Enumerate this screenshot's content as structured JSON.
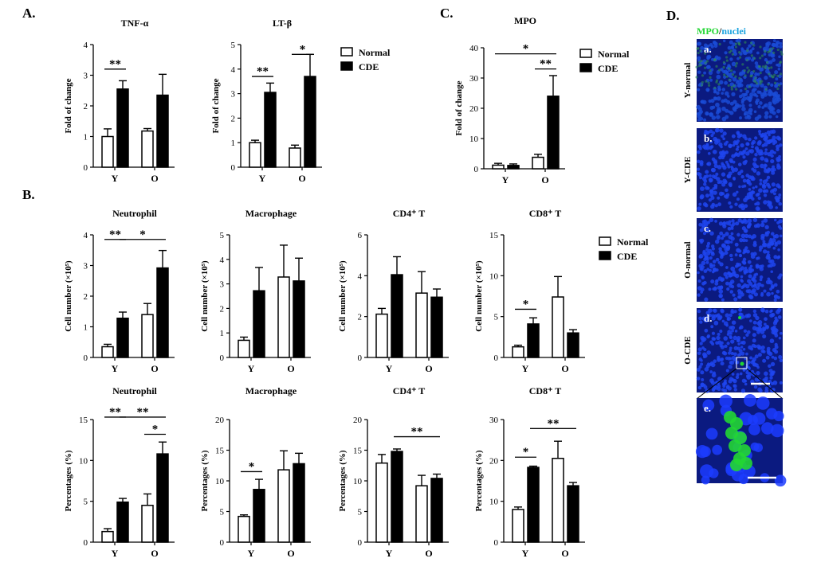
{
  "panels": {
    "a": "A.",
    "b": "B.",
    "c": "C.",
    "d": "D."
  },
  "legend": {
    "normal": "Normal",
    "cde": "CDE"
  },
  "chart_data": [
    {
      "id": "tnf",
      "type": "bar",
      "title": "TNF-α",
      "ylabel": "Fold of change",
      "ylim": [
        0,
        4
      ],
      "yticks": [
        0,
        1,
        2,
        3,
        4
      ],
      "categories": [
        "Y",
        "O"
      ],
      "series": [
        {
          "name": "Normal",
          "values": [
            1.0,
            1.18
          ],
          "err": [
            0.25,
            0.08
          ]
        },
        {
          "name": "CDE",
          "values": [
            2.55,
            2.35
          ],
          "err": [
            0.27,
            0.68
          ]
        }
      ],
      "sig": [
        {
          "label": "**",
          "from": "Y-Normal",
          "to": "Y-CDE",
          "y": 3.2
        }
      ]
    },
    {
      "id": "ltb",
      "type": "bar",
      "title": "LT-β",
      "ylabel": "Fold of change",
      "ylim": [
        0,
        5
      ],
      "yticks": [
        0,
        1,
        2,
        3,
        4,
        5
      ],
      "categories": [
        "Y",
        "O"
      ],
      "series": [
        {
          "name": "Normal",
          "values": [
            1.0,
            0.78
          ],
          "err": [
            0.1,
            0.12
          ]
        },
        {
          "name": "CDE",
          "values": [
            3.05,
            3.7
          ],
          "err": [
            0.38,
            0.9
          ]
        }
      ],
      "sig": [
        {
          "label": "**",
          "from": "Y-Normal",
          "to": "Y-CDE",
          "y": 3.7
        },
        {
          "label": "*",
          "from": "O-Normal",
          "to": "O-CDE",
          "y": 4.6
        }
      ]
    },
    {
      "id": "mpo",
      "type": "bar",
      "title": "MPO",
      "ylabel": "Fold of change",
      "ylim": [
        0,
        40
      ],
      "yticks": [
        0,
        10,
        20,
        30,
        40
      ],
      "categories": [
        "Y",
        "O"
      ],
      "series": [
        {
          "name": "Normal",
          "values": [
            1.2,
            3.8
          ],
          "err": [
            0.6,
            1.0
          ]
        },
        {
          "name": "CDE",
          "values": [
            1.1,
            24.0
          ],
          "err": [
            0.5,
            6.8
          ]
        }
      ],
      "sig": [
        {
          "label": "**",
          "from": "O-Normal",
          "to": "O-CDE",
          "y": 33
        },
        {
          "label": "*",
          "from": "Y-Normal",
          "to": "O-CDE",
          "y": 38
        }
      ]
    },
    {
      "id": "neu_n",
      "type": "bar",
      "title": "Neutrophil",
      "ylabel": "Cell number (×10⁵)",
      "ylim": [
        0,
        4
      ],
      "yticks": [
        0,
        1,
        2,
        3,
        4
      ],
      "categories": [
        "Y",
        "O"
      ],
      "series": [
        {
          "name": "Normal",
          "values": [
            0.35,
            1.4
          ],
          "err": [
            0.08,
            0.36
          ]
        },
        {
          "name": "CDE",
          "values": [
            1.28,
            2.92
          ],
          "err": [
            0.2,
            0.57
          ]
        }
      ],
      "sig": [
        {
          "label": "**",
          "from": "Y-Normal",
          "to": "Y-CDE",
          "y": 3.85
        },
        {
          "label": "*",
          "from": "Y-CDE",
          "to": "O-CDE",
          "y": 3.85
        }
      ]
    },
    {
      "id": "mac_n",
      "type": "bar",
      "title": "Macrophage",
      "ylabel": "Cell number (×10⁵)",
      "ylim": [
        0,
        5
      ],
      "yticks": [
        0,
        1,
        2,
        3,
        4,
        5
      ],
      "categories": [
        "Y",
        "O"
      ],
      "series": [
        {
          "name": "Normal",
          "values": [
            0.7,
            3.28
          ],
          "err": [
            0.13,
            1.3
          ]
        },
        {
          "name": "CDE",
          "values": [
            2.72,
            3.12
          ],
          "err": [
            0.95,
            0.93
          ]
        }
      ],
      "sig": []
    },
    {
      "id": "cd4_n",
      "type": "bar",
      "title": "CD4⁺ T",
      "ylabel": "Cell number (×10⁵)",
      "ylim": [
        0,
        6
      ],
      "yticks": [
        0,
        2,
        4,
        6
      ],
      "categories": [
        "Y",
        "O"
      ],
      "series": [
        {
          "name": "Normal",
          "values": [
            2.12,
            3.15
          ],
          "err": [
            0.28,
            1.05
          ]
        },
        {
          "name": "CDE",
          "values": [
            4.05,
            2.95
          ],
          "err": [
            0.88,
            0.4
          ]
        }
      ],
      "sig": []
    },
    {
      "id": "cd8_n",
      "type": "bar",
      "title": "CD8⁺ T",
      "ylabel": "Cell number (×10⁵)",
      "ylim": [
        0,
        15
      ],
      "yticks": [
        0,
        5,
        10,
        15
      ],
      "categories": [
        "Y",
        "O"
      ],
      "series": [
        {
          "name": "Normal",
          "values": [
            1.3,
            7.4
          ],
          "err": [
            0.2,
            2.5
          ]
        },
        {
          "name": "CDE",
          "values": [
            4.1,
            3.0
          ],
          "err": [
            0.75,
            0.4
          ]
        }
      ],
      "sig": [
        {
          "label": "*",
          "from": "Y-Normal",
          "to": "Y-CDE",
          "y": 5.9
        }
      ]
    },
    {
      "id": "neu_p",
      "type": "bar",
      "title": "Neutrophil",
      "ylabel": "Percentages (%)",
      "ylim": [
        0,
        15
      ],
      "yticks": [
        0,
        5,
        10,
        15
      ],
      "categories": [
        "Y",
        "O"
      ],
      "series": [
        {
          "name": "Normal",
          "values": [
            1.3,
            4.5
          ],
          "err": [
            0.35,
            1.4
          ]
        },
        {
          "name": "CDE",
          "values": [
            4.9,
            10.8
          ],
          "err": [
            0.45,
            1.45
          ]
        }
      ],
      "sig": [
        {
          "label": "**",
          "from": "Y-Normal",
          "to": "Y-CDE",
          "y": 15.3
        },
        {
          "label": "**",
          "from": "Y-CDE",
          "to": "O-CDE",
          "y": 15.3
        },
        {
          "label": "*",
          "from": "O-Normal",
          "to": "O-CDE",
          "y": 13.2
        }
      ]
    },
    {
      "id": "mac_p",
      "type": "bar",
      "title": "Macrophage",
      "ylabel": "Percentages (%)",
      "ylim": [
        0,
        20
      ],
      "yticks": [
        0,
        5,
        10,
        15,
        20
      ],
      "categories": [
        "Y",
        "O"
      ],
      "series": [
        {
          "name": "Normal",
          "values": [
            4.2,
            11.8
          ],
          "err": [
            0.25,
            3.1
          ]
        },
        {
          "name": "CDE",
          "values": [
            8.6,
            12.8
          ],
          "err": [
            1.65,
            1.7
          ]
        }
      ],
      "sig": [
        {
          "label": "*",
          "from": "Y-Normal",
          "to": "Y-CDE",
          "y": 11.5
        }
      ]
    },
    {
      "id": "cd4_p",
      "type": "bar",
      "title": "CD4⁺ T",
      "ylabel": "Percentages (%)",
      "ylim": [
        0,
        20
      ],
      "yticks": [
        0,
        5,
        10,
        15,
        20
      ],
      "categories": [
        "Y",
        "O"
      ],
      "series": [
        {
          "name": "Normal",
          "values": [
            12.9,
            9.2
          ],
          "err": [
            1.4,
            1.7
          ]
        },
        {
          "name": "CDE",
          "values": [
            14.8,
            10.4
          ],
          "err": [
            0.4,
            0.7
          ]
        }
      ],
      "sig": [
        {
          "label": "**",
          "from": "Y-CDE",
          "to": "O-CDE",
          "y": 17.2
        }
      ]
    },
    {
      "id": "cd8_p",
      "type": "bar",
      "title": "CD8⁺ T",
      "ylabel": "Percentages (%)",
      "ylim": [
        0,
        30
      ],
      "yticks": [
        0,
        10,
        20,
        30
      ],
      "categories": [
        "Y",
        "O"
      ],
      "series": [
        {
          "name": "Normal",
          "values": [
            8.0,
            20.5
          ],
          "err": [
            0.6,
            4.2
          ]
        },
        {
          "name": "CDE",
          "values": [
            18.3,
            13.8
          ],
          "err": [
            0.3,
            0.8
          ]
        }
      ],
      "sig": [
        {
          "label": "*",
          "from": "Y-Normal",
          "to": "Y-CDE",
          "y": 20.8
        },
        {
          "label": "**",
          "from": "Y-CDE",
          "to": "O-CDE",
          "y": 27.8
        }
      ]
    }
  ],
  "micrographs": {
    "header_mpo": "MPO",
    "header_sep": "/",
    "header_nuclei": "nuclei",
    "rows": [
      {
        "letter": "a.",
        "label": "Y-normal"
      },
      {
        "letter": "b.",
        "label": "Y-CDE"
      },
      {
        "letter": "c.",
        "label": "O-normal"
      },
      {
        "letter": "d.",
        "label": "O-CDE"
      },
      {
        "letter": "e.",
        "label": ""
      }
    ],
    "colors": {
      "mpo": "#22d633",
      "nuclei": "#1aa3e0",
      "tissue": "#0d1f8a"
    }
  }
}
